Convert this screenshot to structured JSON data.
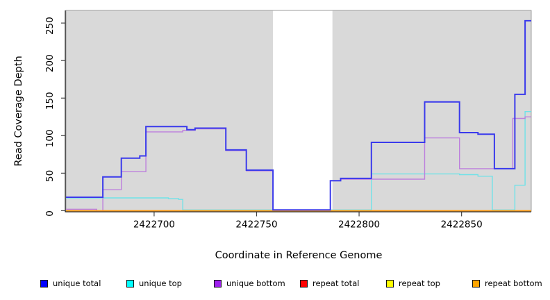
{
  "chart_data": {
    "type": "line",
    "subtype": "step-coverage",
    "title": "",
    "xlabel": "Coordinate in Reference Genome",
    "ylabel": "Read Coverage Depth",
    "xlim": [
      2422657,
      2422884
    ],
    "ylim": [
      0,
      267
    ],
    "x_ticks": [
      2422700,
      2422750,
      2422800,
      2422850
    ],
    "y_ticks": [
      0,
      50,
      100,
      150,
      200,
      250
    ],
    "grid": false,
    "panel_background": "#d9d9d9",
    "gap_band": {
      "from": 2422758,
      "to": 2422787,
      "color": "#ffffff"
    },
    "legend_position": "bottom",
    "series": [
      {
        "name": "unique total",
        "legend_color": "#0000ff",
        "line_color": "#3a3aec",
        "line_width": 2,
        "steps": [
          [
            2422657,
            18
          ],
          [
            2422675,
            45
          ],
          [
            2422684,
            70
          ],
          [
            2422693,
            73
          ],
          [
            2422696,
            112
          ],
          [
            2422716,
            108
          ],
          [
            2422720,
            110
          ],
          [
            2422735,
            81
          ],
          [
            2422745,
            54
          ],
          [
            2422758,
            1
          ],
          [
            2422786,
            40
          ],
          [
            2422791,
            43
          ],
          [
            2422806,
            91
          ],
          [
            2422832,
            145
          ],
          [
            2422849,
            104
          ],
          [
            2422858,
            102
          ],
          [
            2422866,
            56
          ],
          [
            2422876,
            155
          ],
          [
            2422881,
            253
          ]
        ]
      },
      {
        "name": "unique top",
        "legend_color": "#00ffff",
        "line_color": "#6fe2e8",
        "line_width": 1.4,
        "steps": [
          [
            2422657,
            17
          ],
          [
            2422707,
            16
          ],
          [
            2422712,
            15
          ],
          [
            2422714,
            1
          ],
          [
            2422806,
            49
          ],
          [
            2422849,
            48
          ],
          [
            2422858,
            46
          ],
          [
            2422865,
            1
          ],
          [
            2422876,
            34
          ],
          [
            2422881,
            132
          ]
        ]
      },
      {
        "name": "unique bottom",
        "legend_color": "#a020f0",
        "line_color": "#bd80dd",
        "line_width": 1.4,
        "steps": [
          [
            2422657,
            2
          ],
          [
            2422672,
            0
          ],
          [
            2422675,
            28
          ],
          [
            2422684,
            52
          ],
          [
            2422696,
            105
          ],
          [
            2422714,
            107
          ],
          [
            2422720,
            109
          ],
          [
            2422735,
            80
          ],
          [
            2422745,
            53
          ],
          [
            2422758,
            1
          ],
          [
            2422786,
            40
          ],
          [
            2422791,
            42
          ],
          [
            2422832,
            97
          ],
          [
            2422849,
            56
          ],
          [
            2422875,
            123
          ],
          [
            2422881,
            125
          ]
        ]
      },
      {
        "name": "repeat total",
        "legend_color": "#ff0000",
        "line_color": "#ff2222",
        "line_width": 1.4,
        "steps": [
          [
            2422657,
            0
          ]
        ]
      },
      {
        "name": "repeat top",
        "legend_color": "#ffff00",
        "line_color": "#ffee00",
        "line_width": 1.4,
        "steps": [
          [
            2422657,
            0
          ]
        ]
      },
      {
        "name": "repeat bottom",
        "legend_color": "#ffa500",
        "line_color": "#ff9913",
        "line_width": 1.6,
        "steps": [
          [
            2422657,
            0
          ]
        ]
      }
    ]
  }
}
